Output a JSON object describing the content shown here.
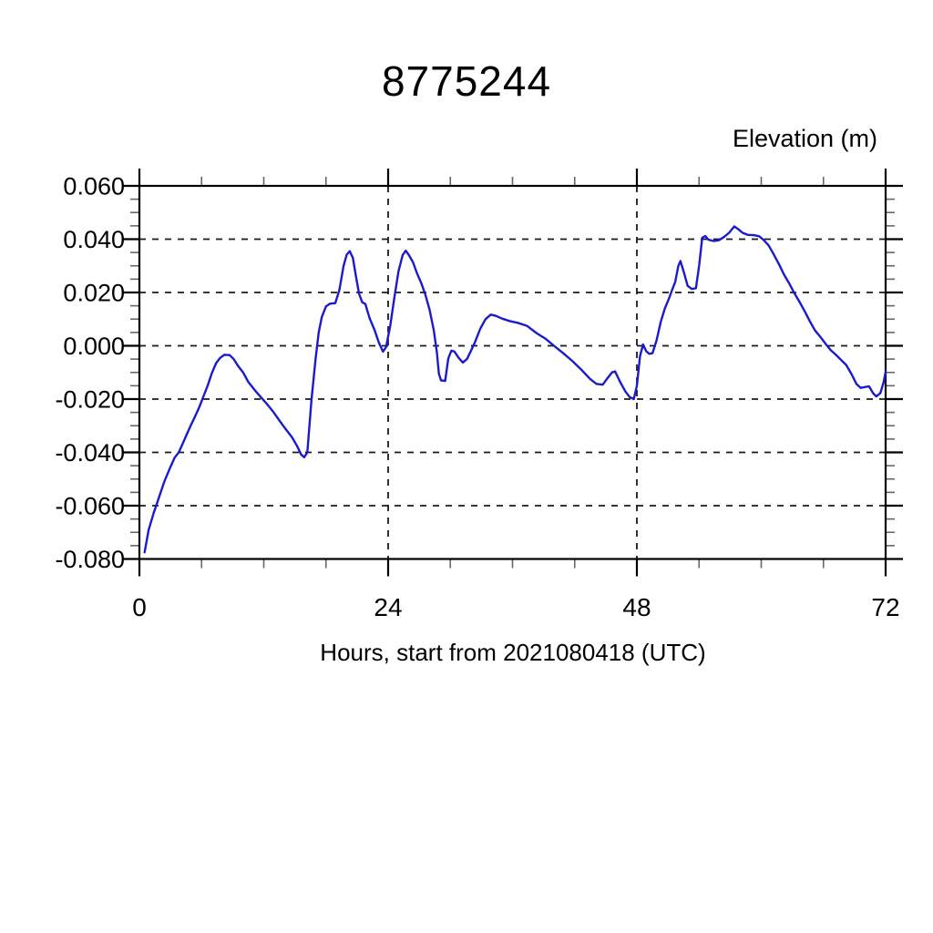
{
  "chart_data": {
    "type": "line",
    "title": "8775244",
    "ylabel": "Elevation (m)",
    "xlabel": "Hours, start from 2021080418 (UTC)",
    "xlim": [
      0,
      72
    ],
    "ylim": [
      -0.08,
      0.06
    ],
    "x_major_ticks": [
      0,
      24,
      48,
      72
    ],
    "x_tick_labels": [
      "0",
      "24",
      "48",
      "72"
    ],
    "x_minor_step": 6,
    "y_major_ticks": [
      0.06,
      0.04,
      0.02,
      0.0,
      -0.02,
      -0.04,
      -0.06,
      -0.08
    ],
    "y_tick_labels": [
      "0.060",
      "0.040",
      "0.020",
      "0.000",
      "-0.020",
      "-0.040",
      "-0.060",
      "-0.080"
    ],
    "y_minor_step": 0.005,
    "h_gridlines_at": [
      0.06,
      0.04,
      0.02,
      0.0,
      -0.02,
      -0.04,
      -0.06,
      -0.08
    ],
    "v_gridlines_at": [
      24,
      48
    ],
    "grid_style": "dashed",
    "legend": "none",
    "line_color": "#1b1bcd",
    "axis_color": "#000000",
    "series": [
      {
        "name": "elevation",
        "points": [
          [
            0.5,
            -0.0775
          ],
          [
            0.9,
            -0.069
          ],
          [
            1.4,
            -0.0625
          ],
          [
            1.9,
            -0.0568
          ],
          [
            2.4,
            -0.051
          ],
          [
            2.9,
            -0.0463
          ],
          [
            3.4,
            -0.042
          ],
          [
            3.8,
            -0.04
          ],
          [
            4.2,
            -0.0365
          ],
          [
            4.6,
            -0.033
          ],
          [
            5.0,
            -0.0295
          ],
          [
            5.4,
            -0.0263
          ],
          [
            5.8,
            -0.0228
          ],
          [
            6.2,
            -0.0188
          ],
          [
            6.6,
            -0.0148
          ],
          [
            7.0,
            -0.0102
          ],
          [
            7.4,
            -0.0065
          ],
          [
            7.8,
            -0.0045
          ],
          [
            8.2,
            -0.0034
          ],
          [
            8.7,
            -0.0035
          ],
          [
            9.1,
            -0.005
          ],
          [
            9.5,
            -0.0075
          ],
          [
            10.0,
            -0.01
          ],
          [
            10.5,
            -0.0135
          ],
          [
            11.1,
            -0.0165
          ],
          [
            11.7,
            -0.0192
          ],
          [
            12.3,
            -0.0218
          ],
          [
            12.9,
            -0.0247
          ],
          [
            13.5,
            -0.028
          ],
          [
            14.1,
            -0.0312
          ],
          [
            14.7,
            -0.0342
          ],
          [
            15.2,
            -0.0375
          ],
          [
            15.6,
            -0.0408
          ],
          [
            15.9,
            -0.0418
          ],
          [
            16.2,
            -0.04
          ],
          [
            16.6,
            -0.0205
          ],
          [
            17.0,
            -0.0048
          ],
          [
            17.3,
            0.005
          ],
          [
            17.6,
            0.0108
          ],
          [
            18.0,
            0.0148
          ],
          [
            18.4,
            0.0158
          ],
          [
            18.9,
            0.016
          ],
          [
            19.3,
            0.021
          ],
          [
            19.7,
            0.03
          ],
          [
            20.0,
            0.0342
          ],
          [
            20.3,
            0.0355
          ],
          [
            20.6,
            0.033
          ],
          [
            20.9,
            0.026
          ],
          [
            21.2,
            0.0195
          ],
          [
            21.5,
            0.0163
          ],
          [
            21.8,
            0.0157
          ],
          [
            22.2,
            0.0105
          ],
          [
            22.7,
            0.0058
          ],
          [
            23.1,
            0.0012
          ],
          [
            23.5,
            -0.0022
          ],
          [
            23.8,
            -0.0005
          ],
          [
            24.2,
            0.0075
          ],
          [
            24.6,
            0.018
          ],
          [
            25.0,
            0.028
          ],
          [
            25.4,
            0.034
          ],
          [
            25.7,
            0.0357
          ],
          [
            26.0,
            0.034
          ],
          [
            26.4,
            0.0313
          ],
          [
            26.8,
            0.027
          ],
          [
            27.2,
            0.0235
          ],
          [
            27.6,
            0.019
          ],
          [
            28.0,
            0.0135
          ],
          [
            28.4,
            0.0058
          ],
          [
            28.7,
            -0.0025
          ],
          [
            28.9,
            -0.0105
          ],
          [
            29.1,
            -0.013
          ],
          [
            29.5,
            -0.0132
          ],
          [
            29.8,
            -0.0048
          ],
          [
            30.1,
            -0.0018
          ],
          [
            30.4,
            -0.0022
          ],
          [
            30.8,
            -0.0045
          ],
          [
            31.2,
            -0.0063
          ],
          [
            31.6,
            -0.005
          ],
          [
            32.0,
            -0.0018
          ],
          [
            32.4,
            0.0015
          ],
          [
            32.9,
            0.0065
          ],
          [
            33.4,
            0.01
          ],
          [
            33.9,
            0.0117
          ],
          [
            34.4,
            0.0112
          ],
          [
            35.0,
            0.0102
          ],
          [
            35.7,
            0.0093
          ],
          [
            36.5,
            0.0086
          ],
          [
            37.4,
            0.0075
          ],
          [
            38.3,
            0.0048
          ],
          [
            39.2,
            0.0026
          ],
          [
            40.0,
            0.0
          ],
          [
            40.9,
            -0.0028
          ],
          [
            41.8,
            -0.0058
          ],
          [
            42.7,
            -0.0092
          ],
          [
            43.5,
            -0.0125
          ],
          [
            44.1,
            -0.0143
          ],
          [
            44.7,
            -0.0146
          ],
          [
            45.2,
            -0.012
          ],
          [
            45.6,
            -0.01
          ],
          [
            45.9,
            -0.0096
          ],
          [
            46.4,
            -0.0137
          ],
          [
            46.9,
            -0.0172
          ],
          [
            47.3,
            -0.0192
          ],
          [
            47.7,
            -0.02
          ],
          [
            48.0,
            -0.015
          ],
          [
            48.3,
            -0.004
          ],
          [
            48.6,
            0.0005
          ],
          [
            48.9,
            -0.002
          ],
          [
            49.2,
            -0.003
          ],
          [
            49.5,
            -0.0028
          ],
          [
            49.9,
            0.002
          ],
          [
            50.3,
            0.009
          ],
          [
            50.7,
            0.014
          ],
          [
            51.1,
            0.0178
          ],
          [
            51.4,
            0.021
          ],
          [
            51.7,
            0.024
          ],
          [
            52.0,
            0.03
          ],
          [
            52.2,
            0.0318
          ],
          [
            52.5,
            0.028
          ],
          [
            52.9,
            0.0225
          ],
          [
            53.3,
            0.0213
          ],
          [
            53.7,
            0.0216
          ],
          [
            54.0,
            0.03
          ],
          [
            54.3,
            0.0405
          ],
          [
            54.6,
            0.0412
          ],
          [
            54.9,
            0.0398
          ],
          [
            55.4,
            0.0393
          ],
          [
            55.9,
            0.0396
          ],
          [
            56.4,
            0.0408
          ],
          [
            56.9,
            0.0424
          ],
          [
            57.4,
            0.0448
          ],
          [
            57.8,
            0.0437
          ],
          [
            58.2,
            0.0424
          ],
          [
            58.7,
            0.0416
          ],
          [
            59.3,
            0.0415
          ],
          [
            59.8,
            0.0411
          ],
          [
            60.2,
            0.0398
          ],
          [
            60.7,
            0.0377
          ],
          [
            61.2,
            0.0343
          ],
          [
            61.7,
            0.0307
          ],
          [
            62.2,
            0.0267
          ],
          [
            62.7,
            0.0234
          ],
          [
            63.2,
            0.0197
          ],
          [
            63.7,
            0.0164
          ],
          [
            64.2,
            0.0129
          ],
          [
            64.7,
            0.0091
          ],
          [
            65.2,
            0.0057
          ],
          [
            65.7,
            0.0034
          ],
          [
            66.2,
            0.0008
          ],
          [
            66.7,
            -0.0016
          ],
          [
            67.2,
            -0.0034
          ],
          [
            67.7,
            -0.0053
          ],
          [
            68.2,
            -0.0072
          ],
          [
            68.7,
            -0.0106
          ],
          [
            69.2,
            -0.0144
          ],
          [
            69.6,
            -0.0158
          ],
          [
            70.0,
            -0.0155
          ],
          [
            70.4,
            -0.0152
          ],
          [
            70.8,
            -0.0178
          ],
          [
            71.1,
            -0.019
          ],
          [
            71.5,
            -0.0177
          ],
          [
            71.8,
            -0.0138
          ],
          [
            72.0,
            -0.0098
          ]
        ]
      }
    ]
  }
}
